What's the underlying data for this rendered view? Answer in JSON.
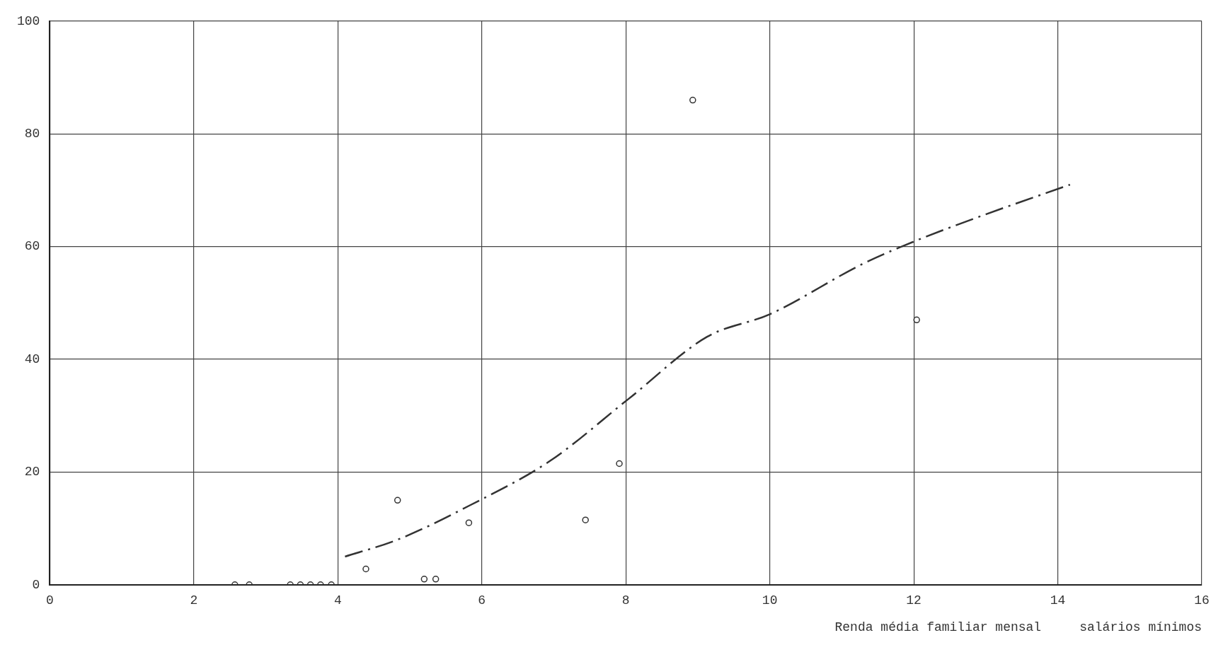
{
  "chart_data": {
    "type": "scatter",
    "xlabel": "Renda média familiar mensal     salários mínimos",
    "xlim": [
      0,
      16
    ],
    "xticks": [
      0,
      2,
      4,
      6,
      8,
      10,
      12,
      14,
      16
    ],
    "ylim": [
      0,
      100
    ],
    "yticks": [
      0,
      20,
      40,
      60,
      80,
      100
    ],
    "grid": true,
    "legend": false,
    "series": [
      {
        "color": "#333333",
        "marker": "circle",
        "x": [
          2.57,
          2.77,
          3.34,
          3.48,
          3.62,
          3.76,
          3.91,
          4.39,
          4.83,
          5.2,
          5.36,
          5.82,
          7.44,
          7.91,
          8.93,
          12.04
        ],
        "values": [
          0,
          0,
          0,
          0,
          0,
          0,
          0,
          2.8,
          15,
          1,
          1,
          11,
          11.5,
          21.5,
          86,
          47
        ]
      },
      {
        "type": "line",
        "color": "#333333",
        "marker": "none",
        "line_style": "dashed",
        "x": [
          4.1,
          4.83,
          5.82,
          6.95,
          8.04,
          9.13,
          10,
          11.3,
          12.02,
          12.95,
          14.17
        ],
        "values": [
          5,
          8,
          14,
          22,
          33,
          44,
          48,
          57,
          61,
          65.5,
          71
        ]
      }
    ]
  }
}
